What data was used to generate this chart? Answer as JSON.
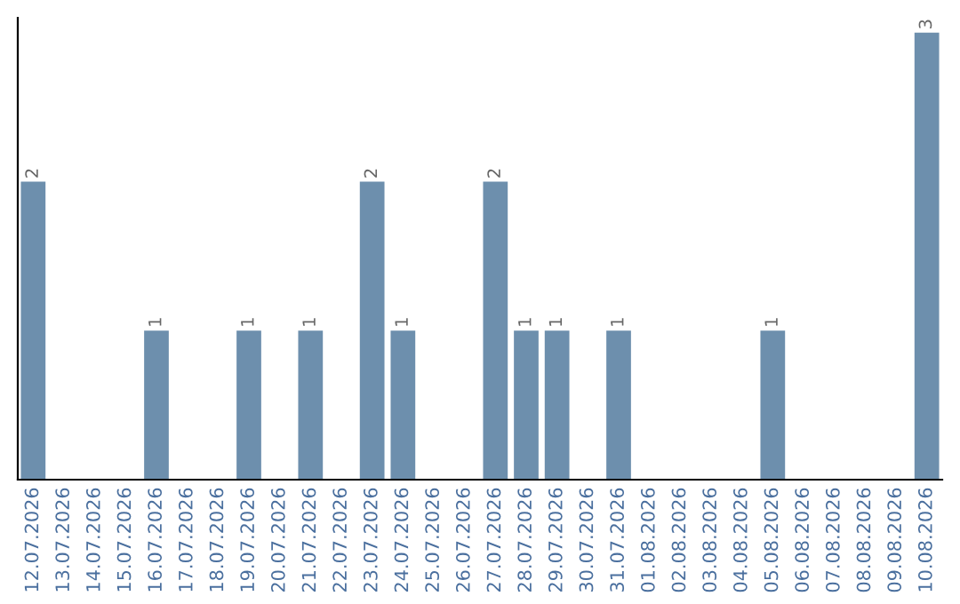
{
  "chart_data": {
    "type": "bar",
    "categories": [
      "12.07.2026",
      "13.07.2026",
      "14.07.2026",
      "15.07.2026",
      "16.07.2026",
      "17.07.2026",
      "18.07.2026",
      "19.07.2026",
      "20.07.2026",
      "21.07.2026",
      "22.07.2026",
      "23.07.2026",
      "24.07.2026",
      "25.07.2026",
      "26.07.2026",
      "27.07.2026",
      "28.07.2026",
      "29.07.2026",
      "30.07.2026",
      "31.07.2026",
      "01.08.2026",
      "02.08.2026",
      "03.08.2026",
      "04.08.2026",
      "05.08.2026",
      "06.08.2026",
      "07.08.2026",
      "08.08.2026",
      "09.08.2026",
      "10.08.2026"
    ],
    "values": [
      2,
      0,
      0,
      0,
      1,
      0,
      0,
      1,
      0,
      1,
      0,
      2,
      1,
      0,
      0,
      2,
      1,
      1,
      0,
      1,
      0,
      0,
      0,
      0,
      1,
      0,
      0,
      0,
      0,
      3
    ],
    "value_labels": [
      "2",
      null,
      null,
      null,
      "1",
      null,
      null,
      "1",
      null,
      "1",
      null,
      "2",
      "1",
      null,
      null,
      "2",
      "1",
      "1",
      null,
      "1",
      null,
      null,
      null,
      null,
      "1",
      null,
      null,
      null,
      null,
      "3"
    ],
    "color": "#6d8fad",
    "ylim": [
      0,
      3.1
    ],
    "tick_labels": "x",
    "grid": false,
    "legend": false
  }
}
